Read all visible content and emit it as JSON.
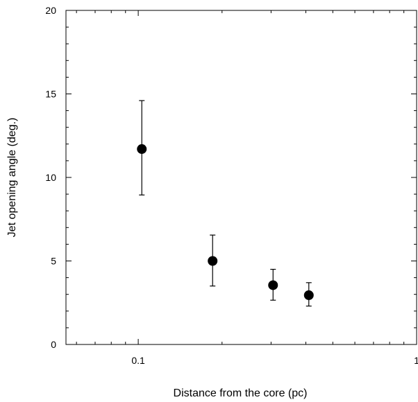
{
  "chart_data": {
    "type": "scatter",
    "title": "",
    "xlabel": "Distance from the core (pc)",
    "ylabel": "Jet opening angle (deg.)",
    "xscale": "log",
    "xlim": [
      0.055,
      1.0
    ],
    "ylim": [
      0,
      20
    ],
    "grid": false,
    "legend": "none",
    "xticks": [
      {
        "value": 0.1,
        "label": "0.1"
      },
      {
        "value": 1.0,
        "label": "1"
      }
    ],
    "yticks": [
      {
        "value": 0,
        "label": "0"
      },
      {
        "value": 5,
        "label": "5"
      },
      {
        "value": 10,
        "label": "10"
      },
      {
        "value": 15,
        "label": "15"
      },
      {
        "value": 20,
        "label": "20"
      }
    ],
    "series": [
      {
        "points": [
          {
            "x": 0.103,
            "y": 11.7,
            "ylow": 8.95,
            "yhigh": 14.6
          },
          {
            "x": 0.185,
            "y": 5.0,
            "ylow": 3.5,
            "yhigh": 6.55
          },
          {
            "x": 0.305,
            "y": 3.55,
            "ylow": 2.65,
            "yhigh": 4.5
          },
          {
            "x": 0.41,
            "y": 2.95,
            "ylow": 2.3,
            "yhigh": 3.7
          }
        ],
        "color": "#000000"
      }
    ]
  }
}
